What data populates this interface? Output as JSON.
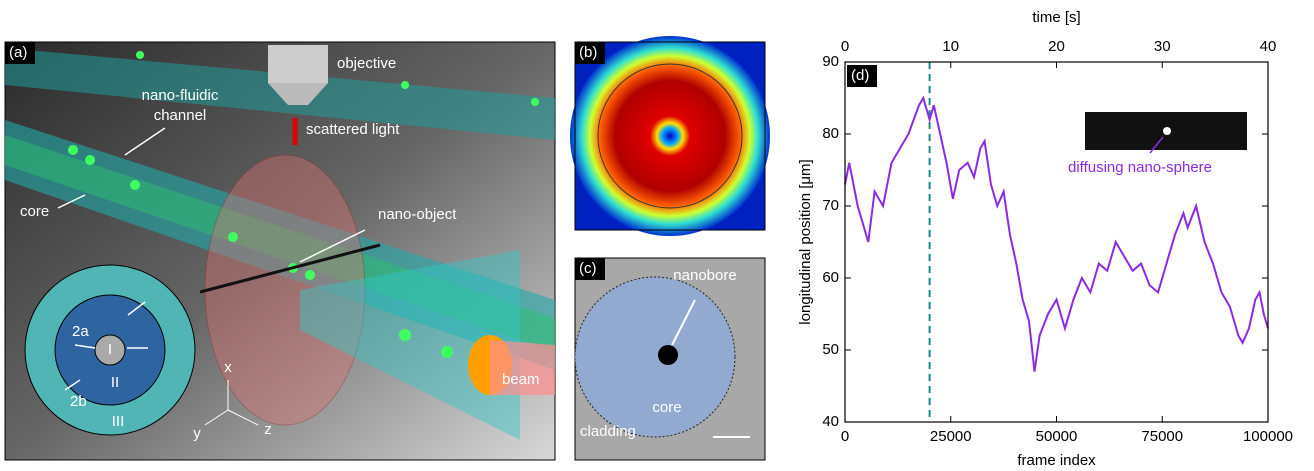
{
  "figure": {
    "a": {
      "tag": "(a)",
      "objective": "objective",
      "channel": [
        "nano-fluidic",
        "channel"
      ],
      "light": "scattered light",
      "core": "core",
      "object": "nano-object",
      "beam": "beam",
      "r_inner": "2a",
      "r_outer": "2b",
      "regions": [
        "I",
        "II",
        "III"
      ],
      "axes": [
        "x",
        "y",
        "z"
      ]
    },
    "b": {
      "tag": "(b)"
    },
    "c": {
      "tag": "(c)",
      "nanobore": "nanobore",
      "core": "core",
      "cladding": "cladding"
    }
  },
  "chart_data": {
    "type": "line",
    "tag": "(d)",
    "x_label": "frame index",
    "x2_label": "time [s]",
    "y_label": "longitudinal position [μm]",
    "annotation": "diffusing nano-sphere",
    "x": [
      0,
      1000,
      3000,
      5500,
      7000,
      9000,
      11000,
      13000,
      15000,
      17500,
      18500,
      20000,
      21000,
      22500,
      24000,
      25500,
      27000,
      29000,
      30500,
      32000,
      33000,
      34500,
      36000,
      37500,
      39000,
      40500,
      42000,
      43500,
      44800,
      46000,
      48000,
      50000,
      52000,
      54000,
      56000,
      58000,
      60000,
      62000,
      64000,
      66000,
      68000,
      70000,
      72000,
      74000,
      76000,
      78000,
      80000,
      81000,
      83000,
      85000,
      87000,
      89000,
      91000,
      93000,
      94000,
      95500,
      97000,
      98000,
      99000,
      100000
    ],
    "values": [
      73,
      76,
      70,
      65,
      72,
      70,
      76,
      78,
      80,
      84,
      85,
      82,
      84,
      80,
      76,
      71,
      75,
      76,
      74,
      78,
      79,
      73,
      70,
      72,
      66,
      62,
      57,
      54,
      47,
      52,
      55,
      57,
      53,
      57,
      60,
      58,
      62,
      61,
      65,
      63,
      61,
      62,
      59,
      58,
      62,
      66,
      69,
      67,
      70,
      65,
      62,
      58,
      56,
      52,
      51,
      53,
      57,
      58,
      55,
      53
    ],
    "color": "#8a2be2",
    "vline": 20000,
    "vline_color": "#1a8a8a",
    "xlim": [
      0,
      100000
    ],
    "xticks": [
      0,
      25000,
      50000,
      75000,
      100000
    ],
    "x2lim": [
      0,
      40
    ],
    "x2ticks": [
      0,
      10,
      20,
      30,
      40
    ],
    "ylim": [
      40,
      90
    ],
    "yticks": [
      40,
      50,
      60,
      70,
      80,
      90
    ]
  }
}
